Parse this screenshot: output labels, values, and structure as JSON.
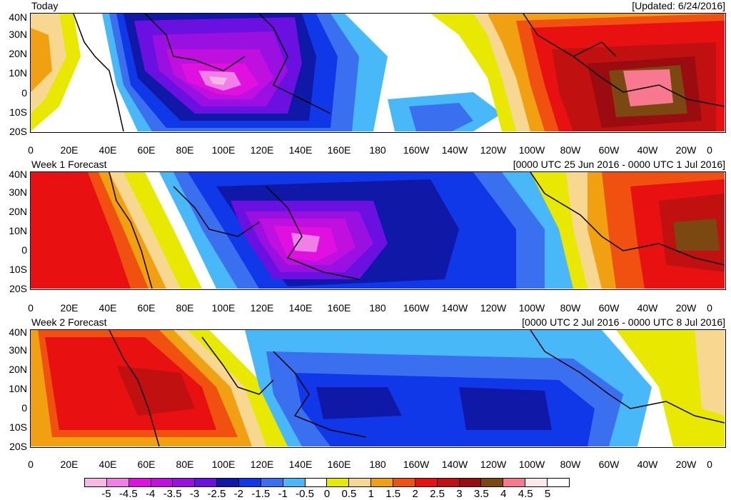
{
  "panels": [
    {
      "title_left": "Today",
      "title_right": "[Updated: 6/24/2016]"
    },
    {
      "title_left": "Week 1 Forecast",
      "title_right": "[0000 UTC 25 Jun 2016 - 0000 UTC 1 Jul 2016]"
    },
    {
      "title_left": "Week 2 Forecast",
      "title_right": "[0000 UTC 2 Jul 2016 - 0000 UTC 8 Jul 2016]"
    }
  ],
  "lat_labels": [
    "40N",
    "30N",
    "20N",
    "10N",
    "0",
    "10S",
    "20S"
  ],
  "lon_labels": [
    "0",
    "20E",
    "40E",
    "60E",
    "80E",
    "100E",
    "120E",
    "140E",
    "160E",
    "180",
    "160W",
    "140W",
    "120W",
    "100W",
    "80W",
    "60W",
    "40W",
    "20W",
    "0"
  ],
  "legend": {
    "labels": [
      "-5",
      "-4.5",
      "-4",
      "-3.5",
      "-3",
      "-2.5",
      "-2",
      "-1.5",
      "-1",
      "-0.5",
      "0",
      "0.5",
      "1",
      "1.5",
      "2",
      "2.5",
      "3",
      "3.5",
      "4",
      "4.5",
      "5"
    ],
    "colors": [
      "#f7b8e8",
      "#f080e8",
      "#e010e0",
      "#c010e0",
      "#9a10e0",
      "#6a10e0",
      "#1018a8",
      "#1038e8",
      "#3a70f0",
      "#48b8f8",
      "#ffffff",
      "#e8e800",
      "#f8d890",
      "#f0a010",
      "#f05010",
      "#e81010",
      "#c01010",
      "#9a0c10",
      "#7a4810",
      "#f87890",
      "#ffe8e8",
      "#ffffff"
    ]
  }
}
